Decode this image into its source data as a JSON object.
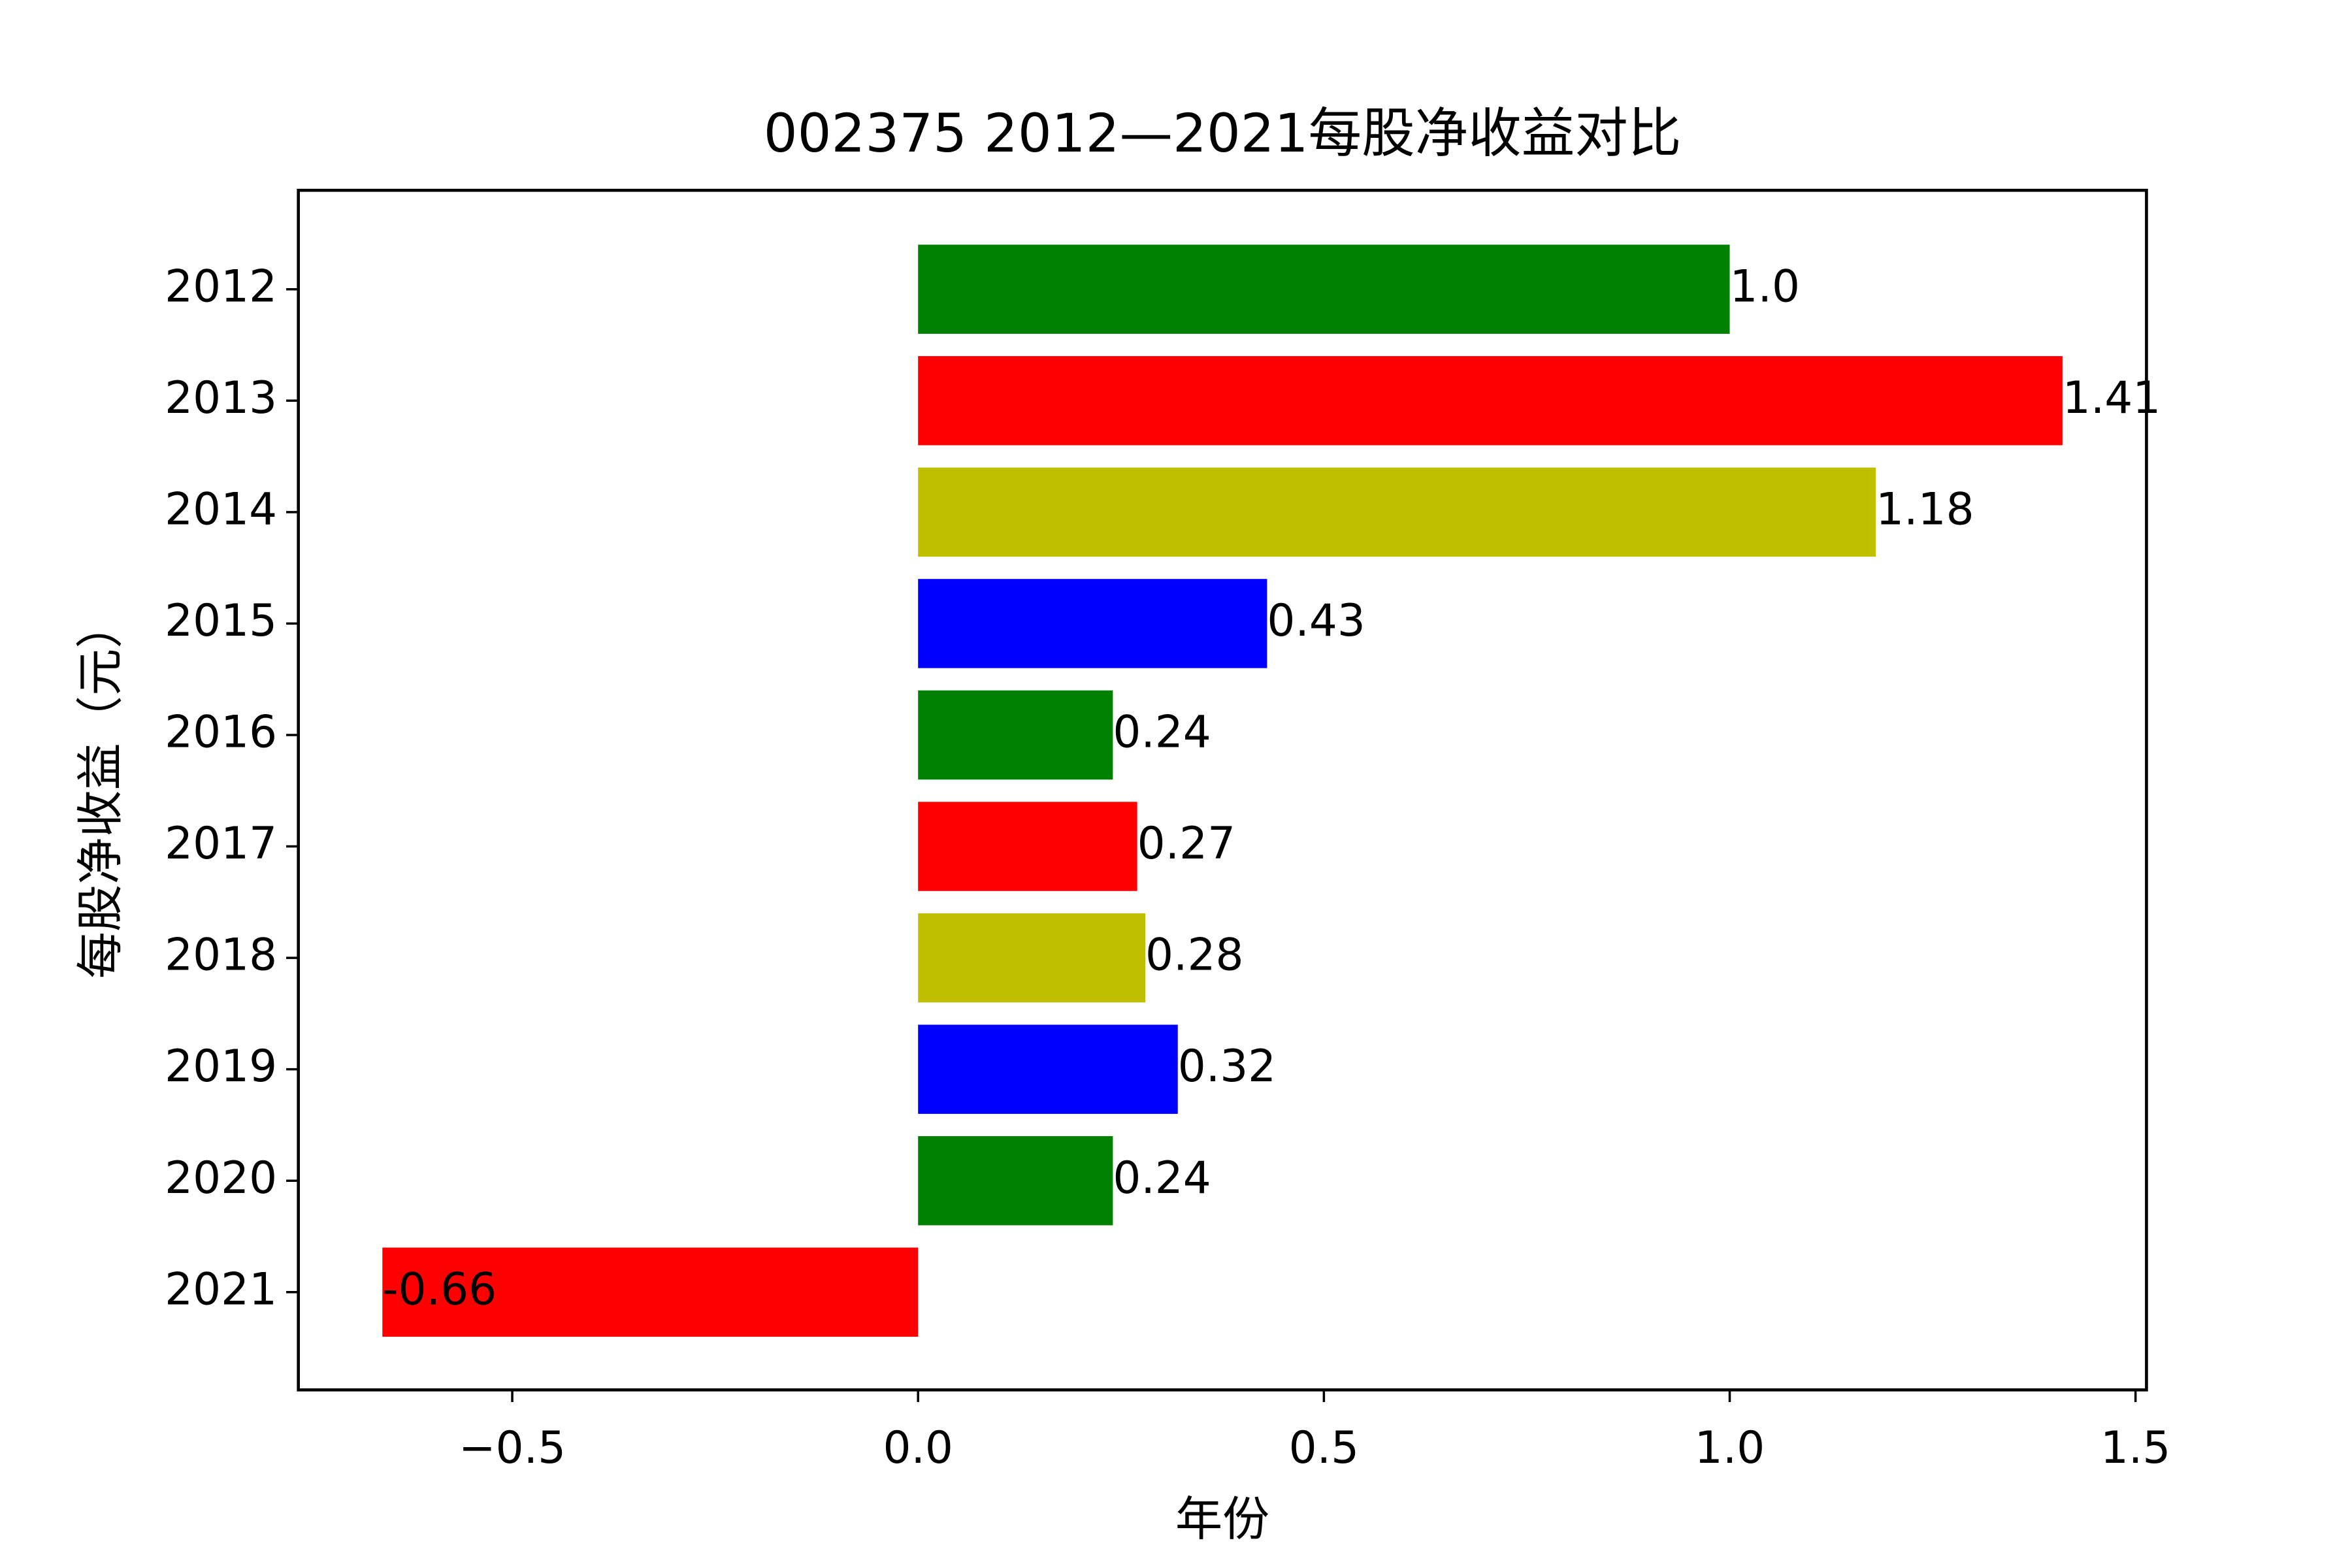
{
  "chart_data": {
    "type": "barh",
    "title": "002375 2012—2021每股净收益对比",
    "xlabel": "年份",
    "ylabel": "每股净收益（元）",
    "categories": [
      "2012",
      "2013",
      "2014",
      "2015",
      "2016",
      "2017",
      "2018",
      "2019",
      "2020",
      "2021"
    ],
    "values": [
      1.0,
      1.41,
      1.18,
      0.43,
      0.24,
      0.27,
      0.28,
      0.32,
      0.24,
      -0.66
    ],
    "value_labels": [
      "1.0",
      "1.41",
      "1.18",
      "0.43",
      "0.24",
      "0.27",
      "0.28",
      "0.32",
      "0.24",
      "-0.66"
    ],
    "colors": [
      "#008000",
      "#ff0000",
      "#bfbf00",
      "#0000ff",
      "#008000",
      "#ff0000",
      "#bfbf00",
      "#0000ff",
      "#008000",
      "#ff0000"
    ],
    "xlim": [
      -0.7635,
      1.5135
    ],
    "xticks": [
      {
        "value": -0.5,
        "label": "−0.5"
      },
      {
        "value": 0,
        "label": "0.0"
      },
      0.5,
      {
        "value": 1,
        "label": "1.0"
      },
      1.5
    ]
  }
}
